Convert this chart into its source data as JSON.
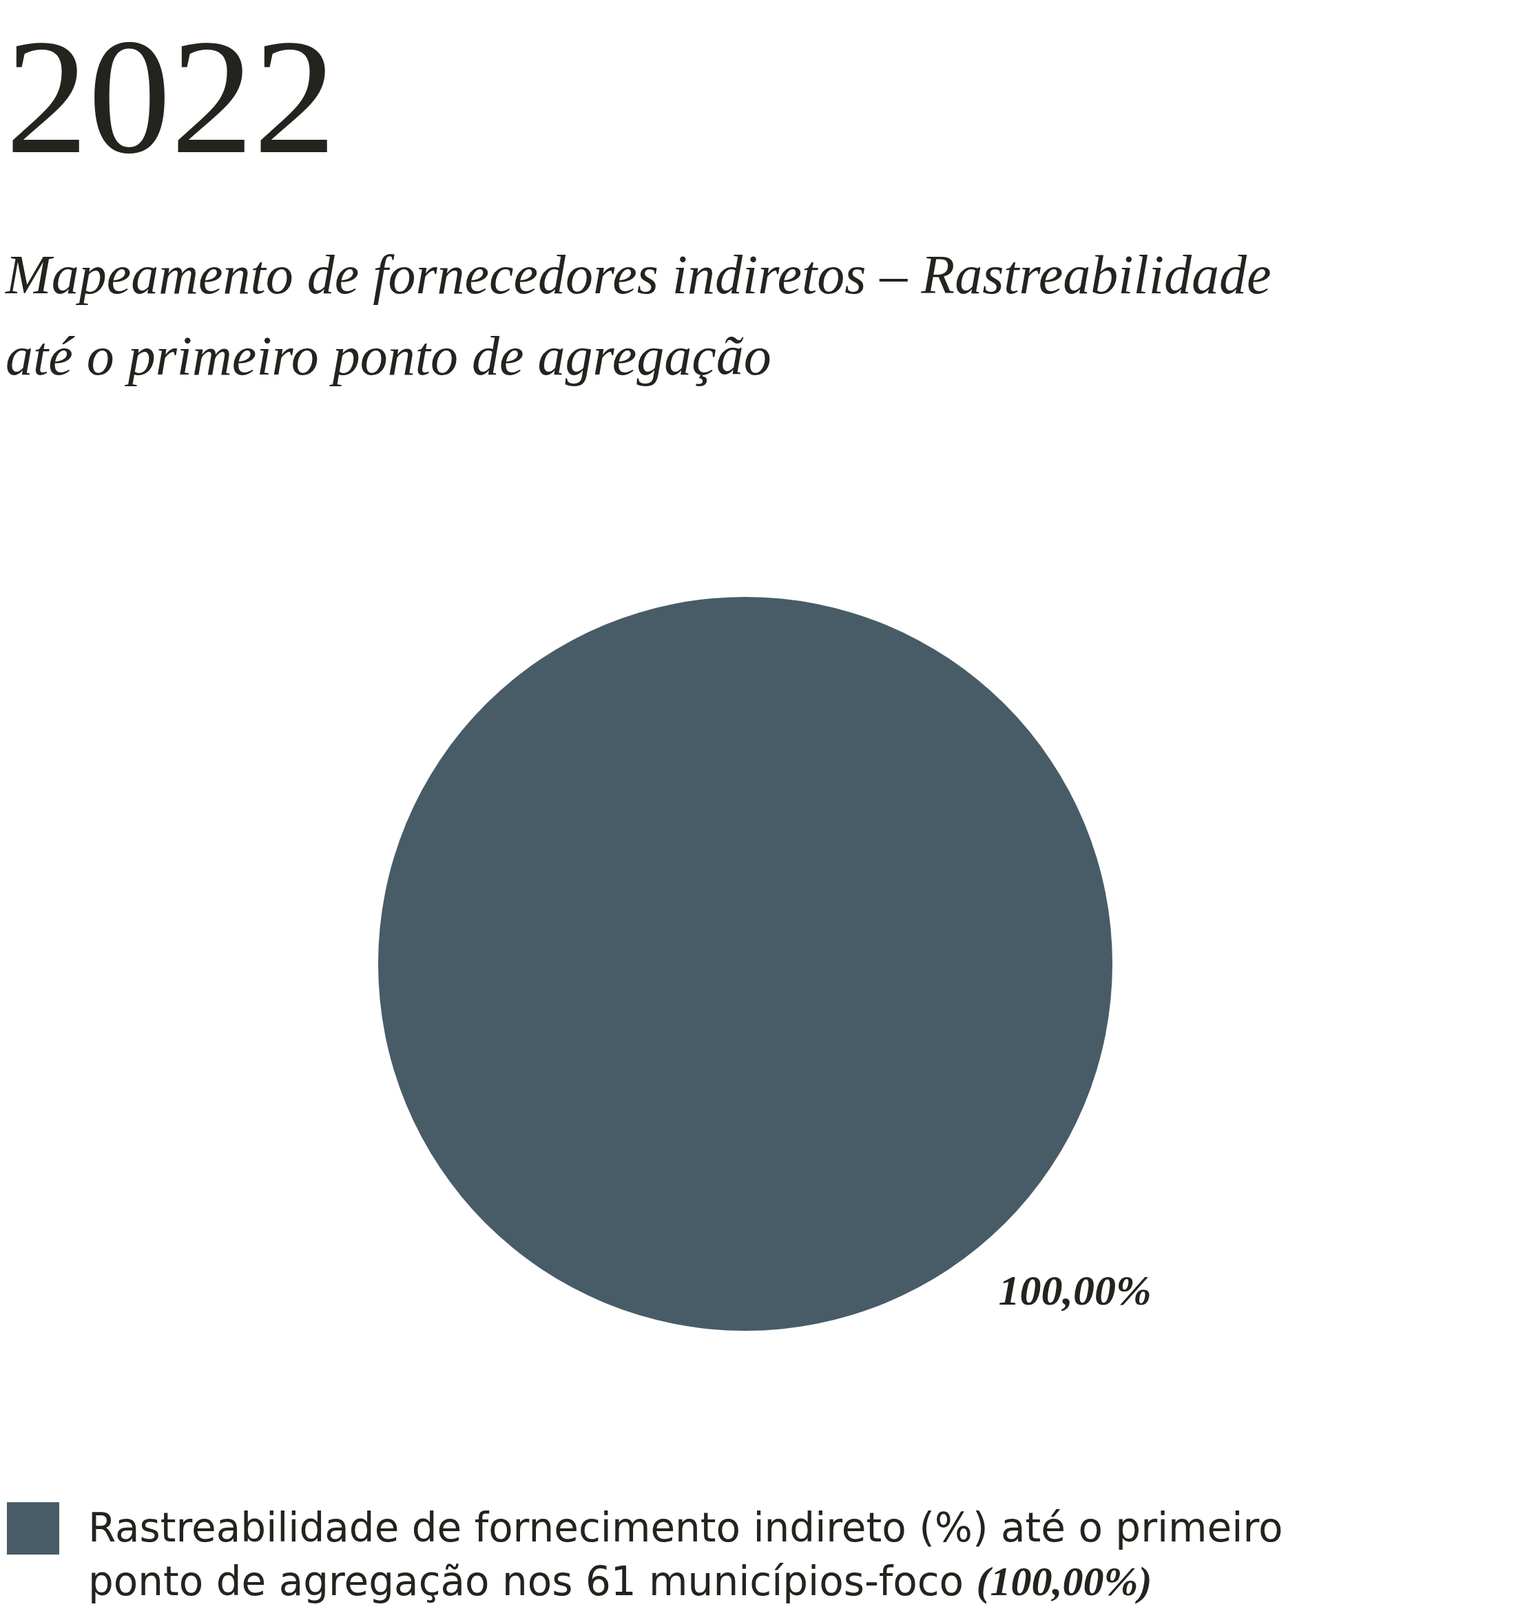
{
  "chart_data": {
    "type": "pie",
    "title": "2022",
    "subtitle": "Mapeamento de fornecedores indiretos – Rastreabilidade até o primeiro ponto de agregação",
    "categories": [
      "Rastreabilidade de fornecimento indireto (%) até o primeiro ponto de agregação nos 61 municípios-foco (100,00%)"
    ],
    "values": [
      100
    ],
    "colors": [
      "#485c68"
    ],
    "value_labels": [
      "100,00%"
    ],
    "legend": "bottom left"
  }
}
